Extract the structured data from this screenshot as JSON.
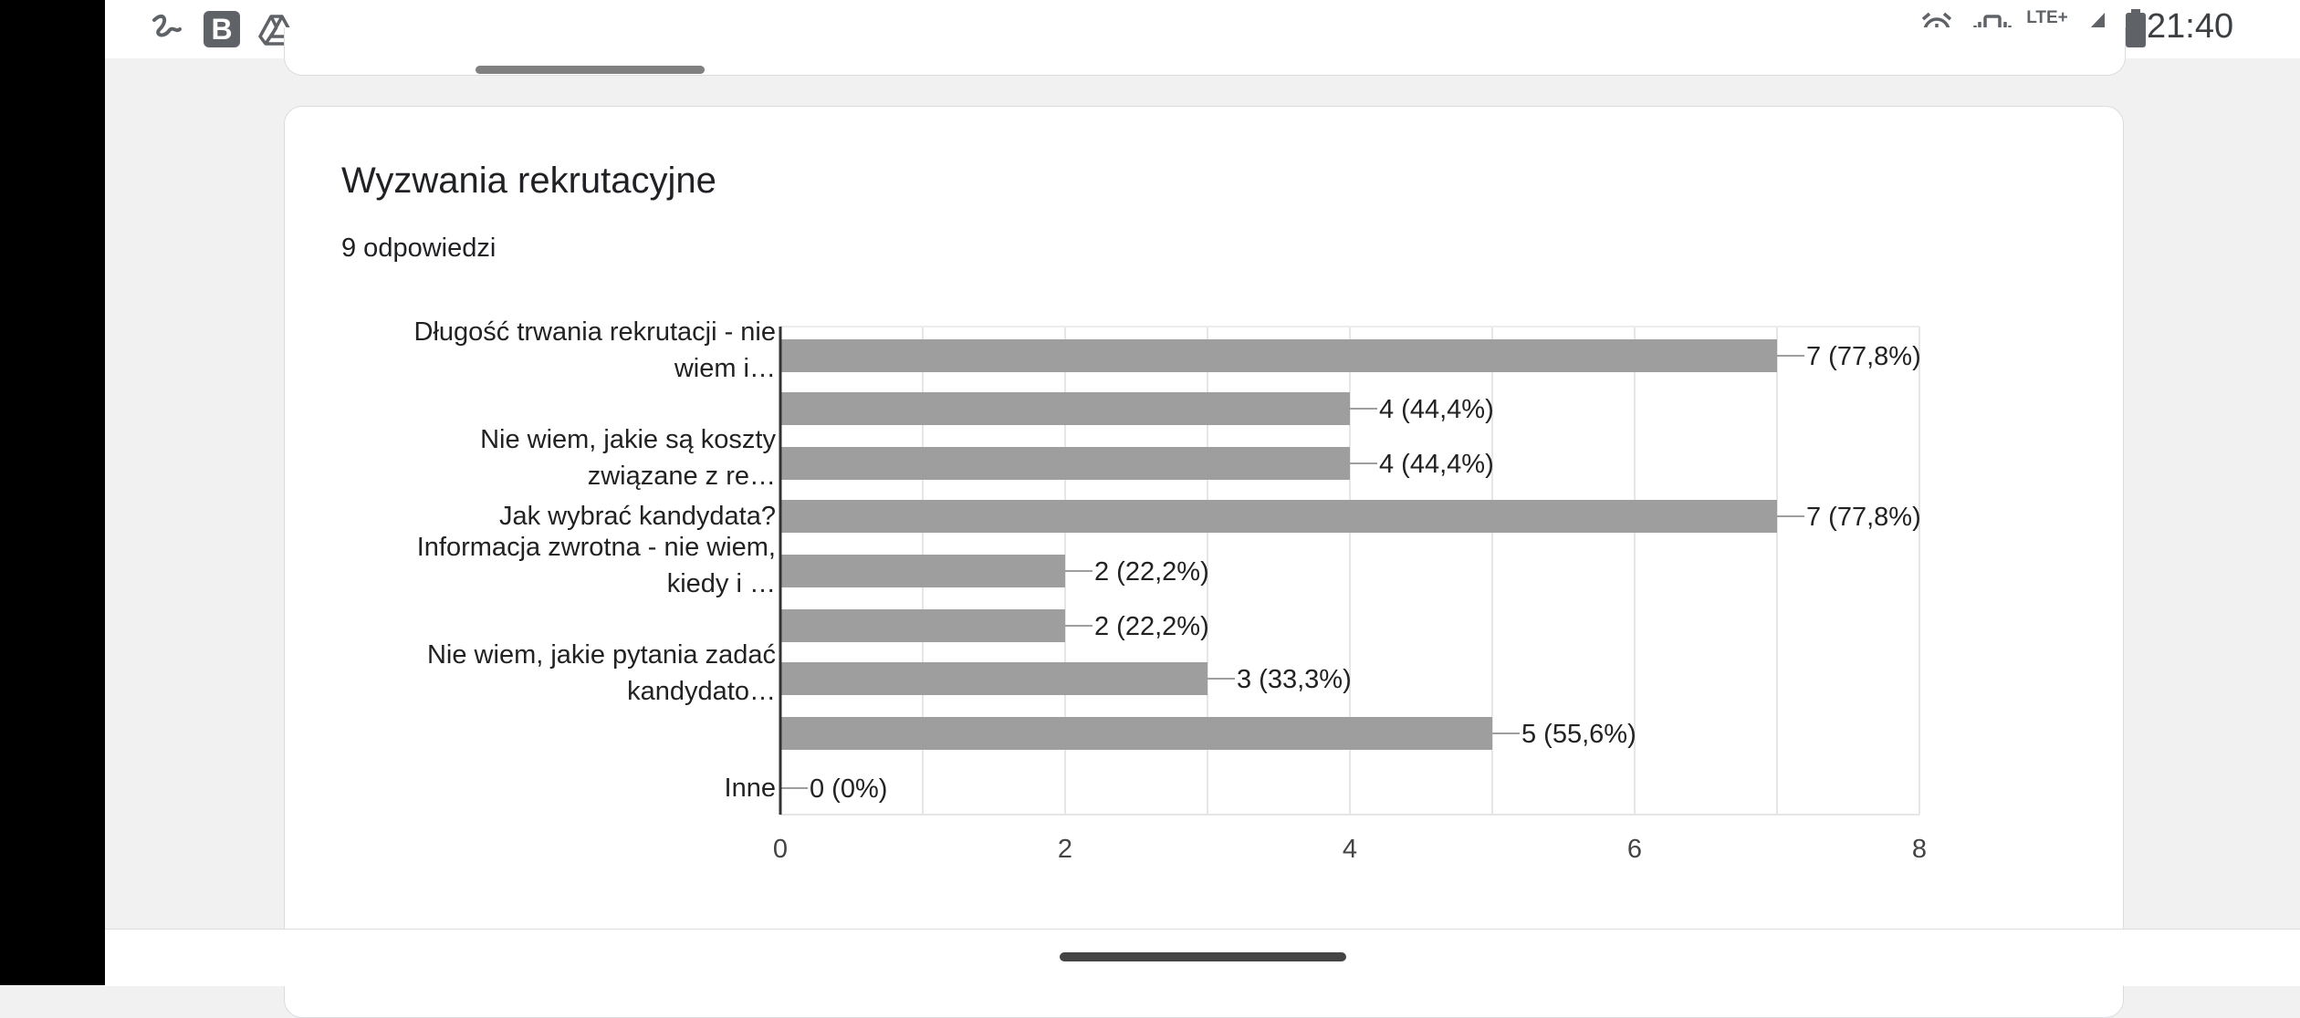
{
  "status_bar": {
    "time": "21:40",
    "network_label": "LTE+",
    "left_icons": [
      "signature-icon",
      "bold-b-app-icon",
      "drive-icon"
    ],
    "right_icons": [
      "alarm-icon",
      "vibrate-icon",
      "lte-icon",
      "signal-icon",
      "battery-icon"
    ]
  },
  "question": {
    "title": "Wyzwania rekrutacyjne",
    "response_count": "9 odpowiedzi"
  },
  "chart_data": {
    "type": "bar",
    "orientation": "horizontal",
    "categories": [
      [
        "Długość trwania rekrutacji - nie",
        "wiem i…"
      ],
      [
        ""
      ],
      [
        "Nie wiem, jakie są koszty",
        "związane z re…"
      ],
      [
        "Jak wybrać kandydata?"
      ],
      [
        "Informacja zwrotna - nie wiem,",
        "kiedy i …"
      ],
      [
        ""
      ],
      [
        "Nie wiem, jakie pytania zadać",
        "kandydato…"
      ],
      [
        ""
      ],
      [
        "Inne"
      ]
    ],
    "values": [
      7,
      4,
      4,
      7,
      2,
      2,
      3,
      5,
      0
    ],
    "data_labels": [
      "7 (77,8%)",
      "4 (44,4%)",
      "4 (44,4%)",
      "7 (77,8%)",
      "2 (22,2%)",
      "2 (22,2%)",
      "3 (33,3%)",
      "5 (55,6%)",
      "0 (0%)"
    ],
    "x_ticks": [
      "0",
      "2",
      "4",
      "6",
      "8"
    ],
    "xlim": [
      0,
      8
    ],
    "grid": true,
    "bar_color": "#9e9e9e"
  }
}
